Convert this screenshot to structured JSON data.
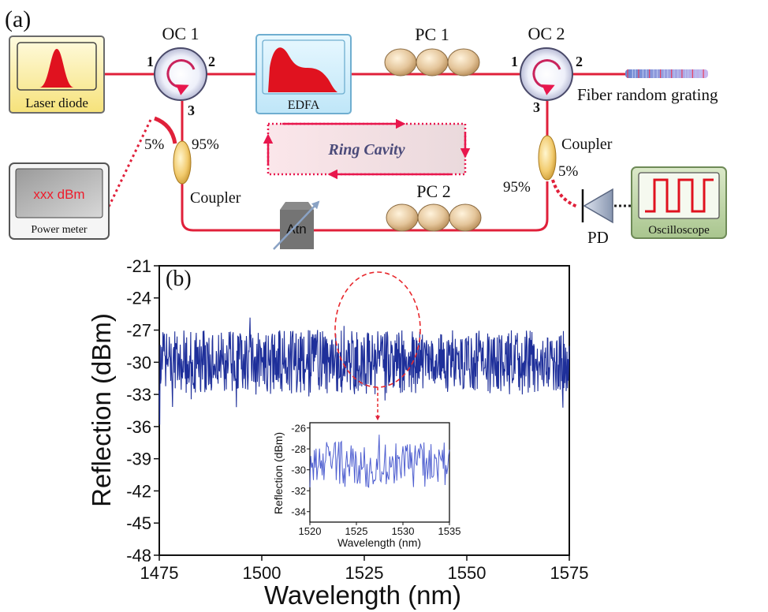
{
  "panel_a": {
    "label": "(a)",
    "laser_diode": "Laser diode",
    "power_meter_reading": "xxx dBm",
    "power_meter": "Power meter",
    "oc1": {
      "title": "OC 1",
      "port1": "1",
      "port2": "2",
      "port3": "3"
    },
    "oc2": {
      "title": "OC 2",
      "port1": "1",
      "port2": "2",
      "port3": "3"
    },
    "edfa": "EDFA",
    "pc1": "PC 1",
    "pc2": "PC 2",
    "fiber_random_grating": "Fiber random grating",
    "ring_cavity": "Ring Cavity",
    "coupler_left": {
      "label": "Coupler",
      "split_small": "5%",
      "split_large": "95%"
    },
    "coupler_right": {
      "label": "Coupler",
      "split_small": "5%",
      "split_large": "95%"
    },
    "attenuator": "Atn",
    "pd": "PD",
    "oscilloscope": "Oscilloscope",
    "colors": {
      "fiber": "#e0203a",
      "ring_arrows": "#e8174d"
    }
  },
  "chart_data": [
    {
      "type": "line",
      "panel_label": "(b)",
      "xlabel": "Wavelength (nm)",
      "ylabel": "Reflection (dBm)",
      "xlim": [
        1475,
        1575
      ],
      "ylim": [
        -48,
        -21
      ],
      "xticks": [
        "1475",
        "1500",
        "1525",
        "1550",
        "1575"
      ],
      "yticks": [
        "-21",
        "-24",
        "-27",
        "-30",
        "-33",
        "-36",
        "-39",
        "-42",
        "-45",
        "-48"
      ],
      "line_color": "#1e2f9a",
      "series": [
        {
          "mean": -30.0,
          "noise_amplitude": 3.0,
          "points": 900
        }
      ],
      "highlight": {
        "type": "dashed-ellipse",
        "x_range": [
          1520,
          1535
        ],
        "color": "#e8282d"
      }
    },
    {
      "type": "line",
      "role": "inset",
      "xlabel": "Wavelength (nm)",
      "ylabel": "Reflection (dBm)",
      "xlim": [
        1520,
        1535
      ],
      "ylim": [
        -35,
        -25.5
      ],
      "xticks": [
        "1520",
        "1525",
        "1530",
        "1535"
      ],
      "yticks": [
        "-26",
        "-28",
        "-30",
        "-32",
        "-34"
      ],
      "line_color": "#4f5fd0",
      "series": [
        {
          "mean": -29.5,
          "noise_amplitude": 2.2,
          "points": 160
        }
      ]
    }
  ]
}
